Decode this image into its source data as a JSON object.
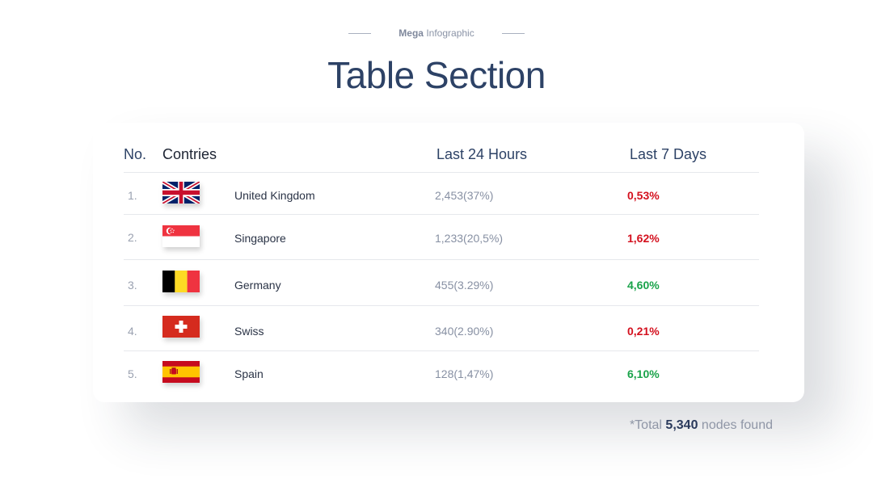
{
  "header": {
    "kicker_strong": "Mega",
    "kicker_rest": "Infographic",
    "title": "Table Section"
  },
  "table": {
    "columns": {
      "no": "No.",
      "countries": "Contries",
      "last24": "Last 24 Hours",
      "last7": "Last 7 Days"
    },
    "rows": [
      {
        "no": "1.",
        "flag": "uk-flag-icon",
        "country": "United Kingdom",
        "last24": "2,453(37%)",
        "last7": "0,53%",
        "trend": "down"
      },
      {
        "no": "2.",
        "flag": "singapore-flag-icon",
        "country": "Singapore",
        "last24": "1,233(20,5%)",
        "last7": "1,62%",
        "trend": "down"
      },
      {
        "no": "3.",
        "flag": "belgium-flag-icon",
        "country": "Germany",
        "last24": "455(3.29%)",
        "last7": "4,60%",
        "trend": "up"
      },
      {
        "no": "4.",
        "flag": "swiss-flag-icon",
        "country": "Swiss",
        "last24": "340(2.90%)",
        "last7": "0,21%",
        "trend": "down"
      },
      {
        "no": "5.",
        "flag": "spain-flag-icon",
        "country": "Spain",
        "last24": "128(1,47%)",
        "last7": "6,10%",
        "trend": "up"
      }
    ]
  },
  "footer": {
    "prefix": "*Total ",
    "value": "5,340",
    "suffix": " nodes found"
  },
  "colors": {
    "up": "#1aa34a",
    "down": "#d4101e",
    "title": "#2d4266"
  }
}
